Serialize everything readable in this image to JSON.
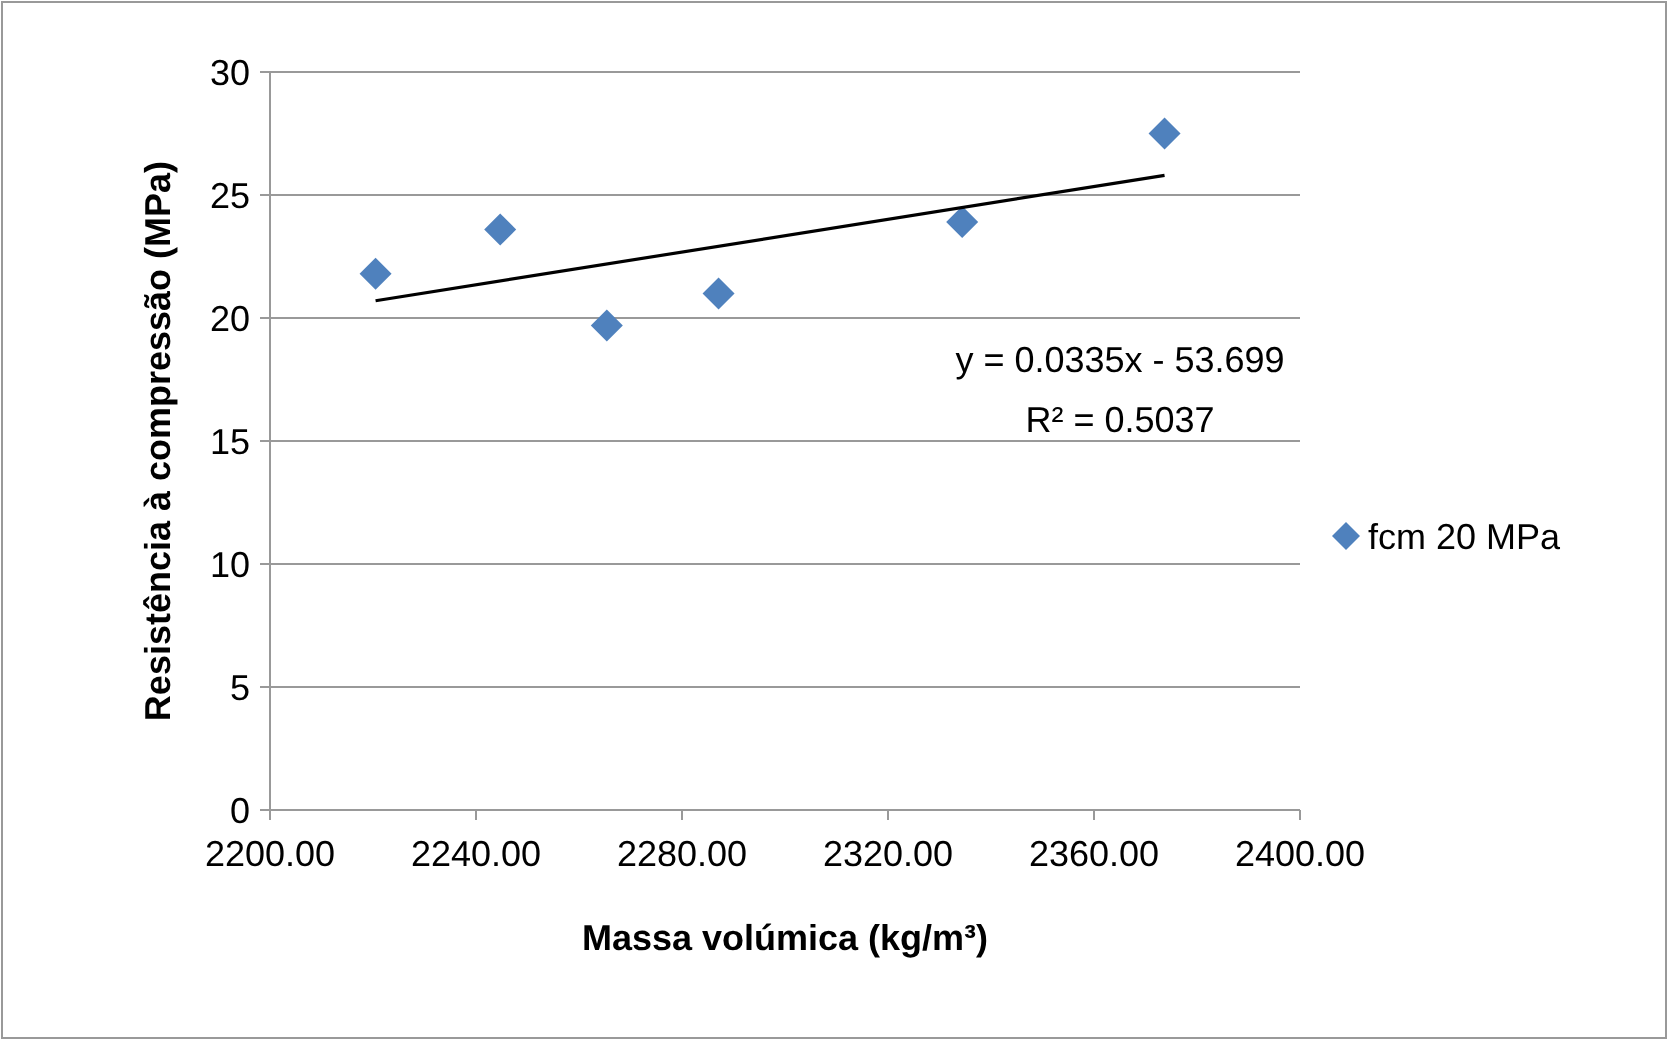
{
  "chart_data": {
    "type": "scatter",
    "xlabel": "Massa volúmica (kg/m³)",
    "ylabel": "Resistência à compressão (MPa)",
    "xlim": [
      2200,
      2400
    ],
    "xticks": [
      {
        "value": 2200,
        "label": "2200.00"
      },
      {
        "value": 2240,
        "label": "2240.00"
      },
      {
        "value": 2280,
        "label": "2280.00"
      },
      {
        "value": 2320,
        "label": "2320.00"
      },
      {
        "value": 2360,
        "label": "2360.00"
      },
      {
        "value": 2400,
        "label": "2400.00"
      }
    ],
    "ylim": [
      0,
      30
    ],
    "yticks": [
      0,
      5,
      10,
      15,
      20,
      25,
      30
    ],
    "grid": "y",
    "legend": "right",
    "series": [
      {
        "name": "fcm 20 MPa",
        "color": "#4f81bd",
        "marker": "diamond",
        "x": [
          2220.5,
          2244.7,
          2265.4,
          2287.1,
          2334.4,
          2373.7
        ],
        "values": [
          21.8,
          23.6,
          19.7,
          21.0,
          23.9,
          27.5
        ]
      },
      {
        "type": "line",
        "color": "#000000",
        "x": [
          2220.5,
          2373.7
        ],
        "values": [
          20.7,
          25.8
        ]
      }
    ],
    "annotations": [
      "y = 0.0335x - 53.699",
      "R² = 0.5037"
    ]
  }
}
